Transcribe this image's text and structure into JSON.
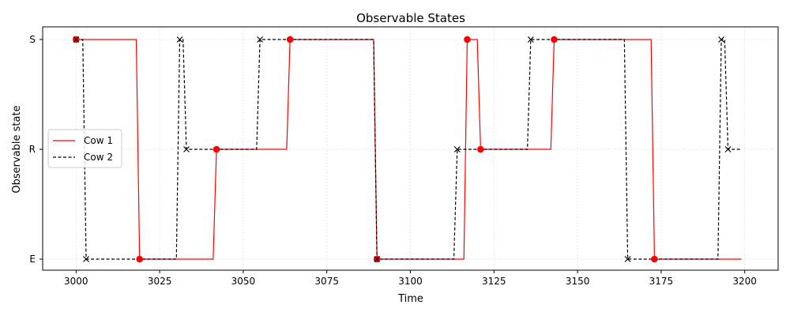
{
  "chart_data": {
    "type": "line",
    "title": "Observable States",
    "xlabel": "Time",
    "ylabel": "Observable state",
    "xlim": [
      2990,
      3210
    ],
    "x_ticks": [
      3000,
      3025,
      3050,
      3075,
      3100,
      3125,
      3150,
      3175,
      3200
    ],
    "y_categories": [
      "E",
      "R",
      "S"
    ],
    "y_tick_labels": [
      "S",
      "R",
      "E"
    ],
    "grid": true,
    "legend_position": "center-left",
    "series": [
      {
        "name": "Cow 1",
        "color": "#ff0000",
        "linestyle": "solid",
        "marker": "circle",
        "points": [
          [
            3000,
            "S"
          ],
          [
            3018,
            "S"
          ],
          [
            3019,
            "E"
          ],
          [
            3041,
            "E"
          ],
          [
            3042,
            "R"
          ],
          [
            3063,
            "R"
          ],
          [
            3064,
            "S"
          ],
          [
            3089,
            "S"
          ],
          [
            3090,
            "E"
          ],
          [
            3116,
            "E"
          ],
          [
            3117,
            "S"
          ],
          [
            3120,
            "S"
          ],
          [
            3121,
            "R"
          ],
          [
            3142,
            "R"
          ],
          [
            3143,
            "S"
          ],
          [
            3172,
            "S"
          ],
          [
            3173,
            "E"
          ],
          [
            3199,
            "E"
          ]
        ],
        "markers": [
          [
            3000,
            "S"
          ],
          [
            3019,
            "E"
          ],
          [
            3042,
            "R"
          ],
          [
            3064,
            "S"
          ],
          [
            3090,
            "E"
          ],
          [
            3117,
            "S"
          ],
          [
            3121,
            "R"
          ],
          [
            3143,
            "S"
          ],
          [
            3173,
            "E"
          ]
        ]
      },
      {
        "name": "Cow 2",
        "color": "#000000",
        "linestyle": "dashed",
        "marker": "x",
        "points": [
          [
            3000,
            "S"
          ],
          [
            3002,
            "S"
          ],
          [
            3003,
            "E"
          ],
          [
            3030,
            "E"
          ],
          [
            3031,
            "S"
          ],
          [
            3032,
            "S"
          ],
          [
            3033,
            "R"
          ],
          [
            3054,
            "R"
          ],
          [
            3055,
            "S"
          ],
          [
            3089,
            "S"
          ],
          [
            3090,
            "E"
          ],
          [
            3113,
            "E"
          ],
          [
            3114,
            "R"
          ],
          [
            3135,
            "R"
          ],
          [
            3136,
            "S"
          ],
          [
            3164,
            "S"
          ],
          [
            3165,
            "E"
          ],
          [
            3192,
            "E"
          ],
          [
            3193,
            "S"
          ],
          [
            3194,
            "S"
          ],
          [
            3195,
            "R"
          ],
          [
            3199,
            "R"
          ]
        ],
        "markers": [
          [
            3000,
            "S"
          ],
          [
            3003,
            "E"
          ],
          [
            3031,
            "S"
          ],
          [
            3033,
            "R"
          ],
          [
            3055,
            "S"
          ],
          [
            3090,
            "E"
          ],
          [
            3114,
            "R"
          ],
          [
            3136,
            "S"
          ],
          [
            3165,
            "E"
          ],
          [
            3193,
            "S"
          ],
          [
            3195,
            "R"
          ]
        ]
      }
    ]
  }
}
